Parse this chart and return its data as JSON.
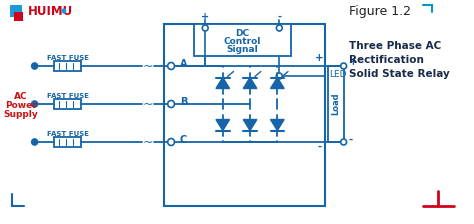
{
  "bg_color": "#ffffff",
  "title_text": "Figure 1.2",
  "subtitle_lines": [
    "Three Phase AC",
    "Rectification",
    "Solid State Relay"
  ],
  "ac_label": [
    "AC",
    "Power",
    "Supply"
  ],
  "fuse_labels": [
    "FAST FUSE",
    "FAST FUSE",
    "FAST FUSE"
  ],
  "phase_labels": [
    "A",
    "B",
    "C"
  ],
  "dc_label": [
    "DC",
    "Control",
    "Signal"
  ],
  "led_label": "LED",
  "load_label": "Load",
  "huimu_color": "#d0021b",
  "circuit_color": "#1565a8",
  "ac_label_color": "#cc1111",
  "subtitle_color": "#1a2a4a",
  "title_color": "#222222",
  "cyan_color": "#0099bb",
  "logo_blue": "#1b9bd9"
}
